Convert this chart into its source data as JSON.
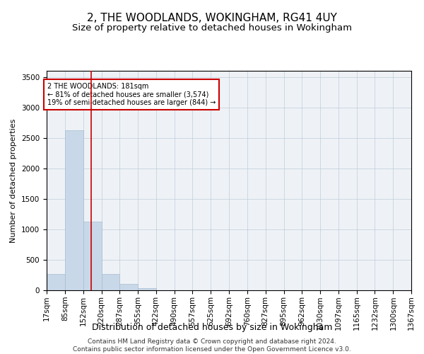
{
  "title": "2, THE WOODLANDS, WOKINGHAM, RG41 4UY",
  "subtitle": "Size of property relative to detached houses in Wokingham",
  "xlabel": "Distribution of detached houses by size in Wokingham",
  "ylabel": "Number of detached properties",
  "bar_color": "#c8d8e8",
  "bar_edge_color": "#a8bccf",
  "grid_color": "#c0ccd8",
  "bg_color": "#eef2f7",
  "annotation_text": "2 THE WOODLANDS: 181sqm\n← 81% of detached houses are smaller (3,574)\n19% of semi-detached houses are larger (844) →",
  "vline_x": 181,
  "vline_color": "#cc0000",
  "footer": "Contains HM Land Registry data © Crown copyright and database right 2024.\nContains public sector information licensed under the Open Government Licence v3.0.",
  "bin_edges": [
    17,
    85,
    152,
    220,
    287,
    355,
    422,
    490,
    557,
    625,
    692,
    760,
    827,
    895,
    962,
    1030,
    1097,
    1165,
    1232,
    1300,
    1367
  ],
  "bin_counts": [
    270,
    2630,
    1130,
    270,
    100,
    40,
    0,
    0,
    0,
    0,
    0,
    0,
    0,
    0,
    0,
    0,
    0,
    0,
    0,
    0
  ],
  "ylim": [
    0,
    3600
  ],
  "yticks": [
    0,
    500,
    1000,
    1500,
    2000,
    2500,
    3000,
    3500
  ],
  "title_fontsize": 11,
  "subtitle_fontsize": 9.5,
  "xlabel_fontsize": 9,
  "ylabel_fontsize": 8,
  "tick_fontsize": 7.5,
  "footer_fontsize": 6.5
}
